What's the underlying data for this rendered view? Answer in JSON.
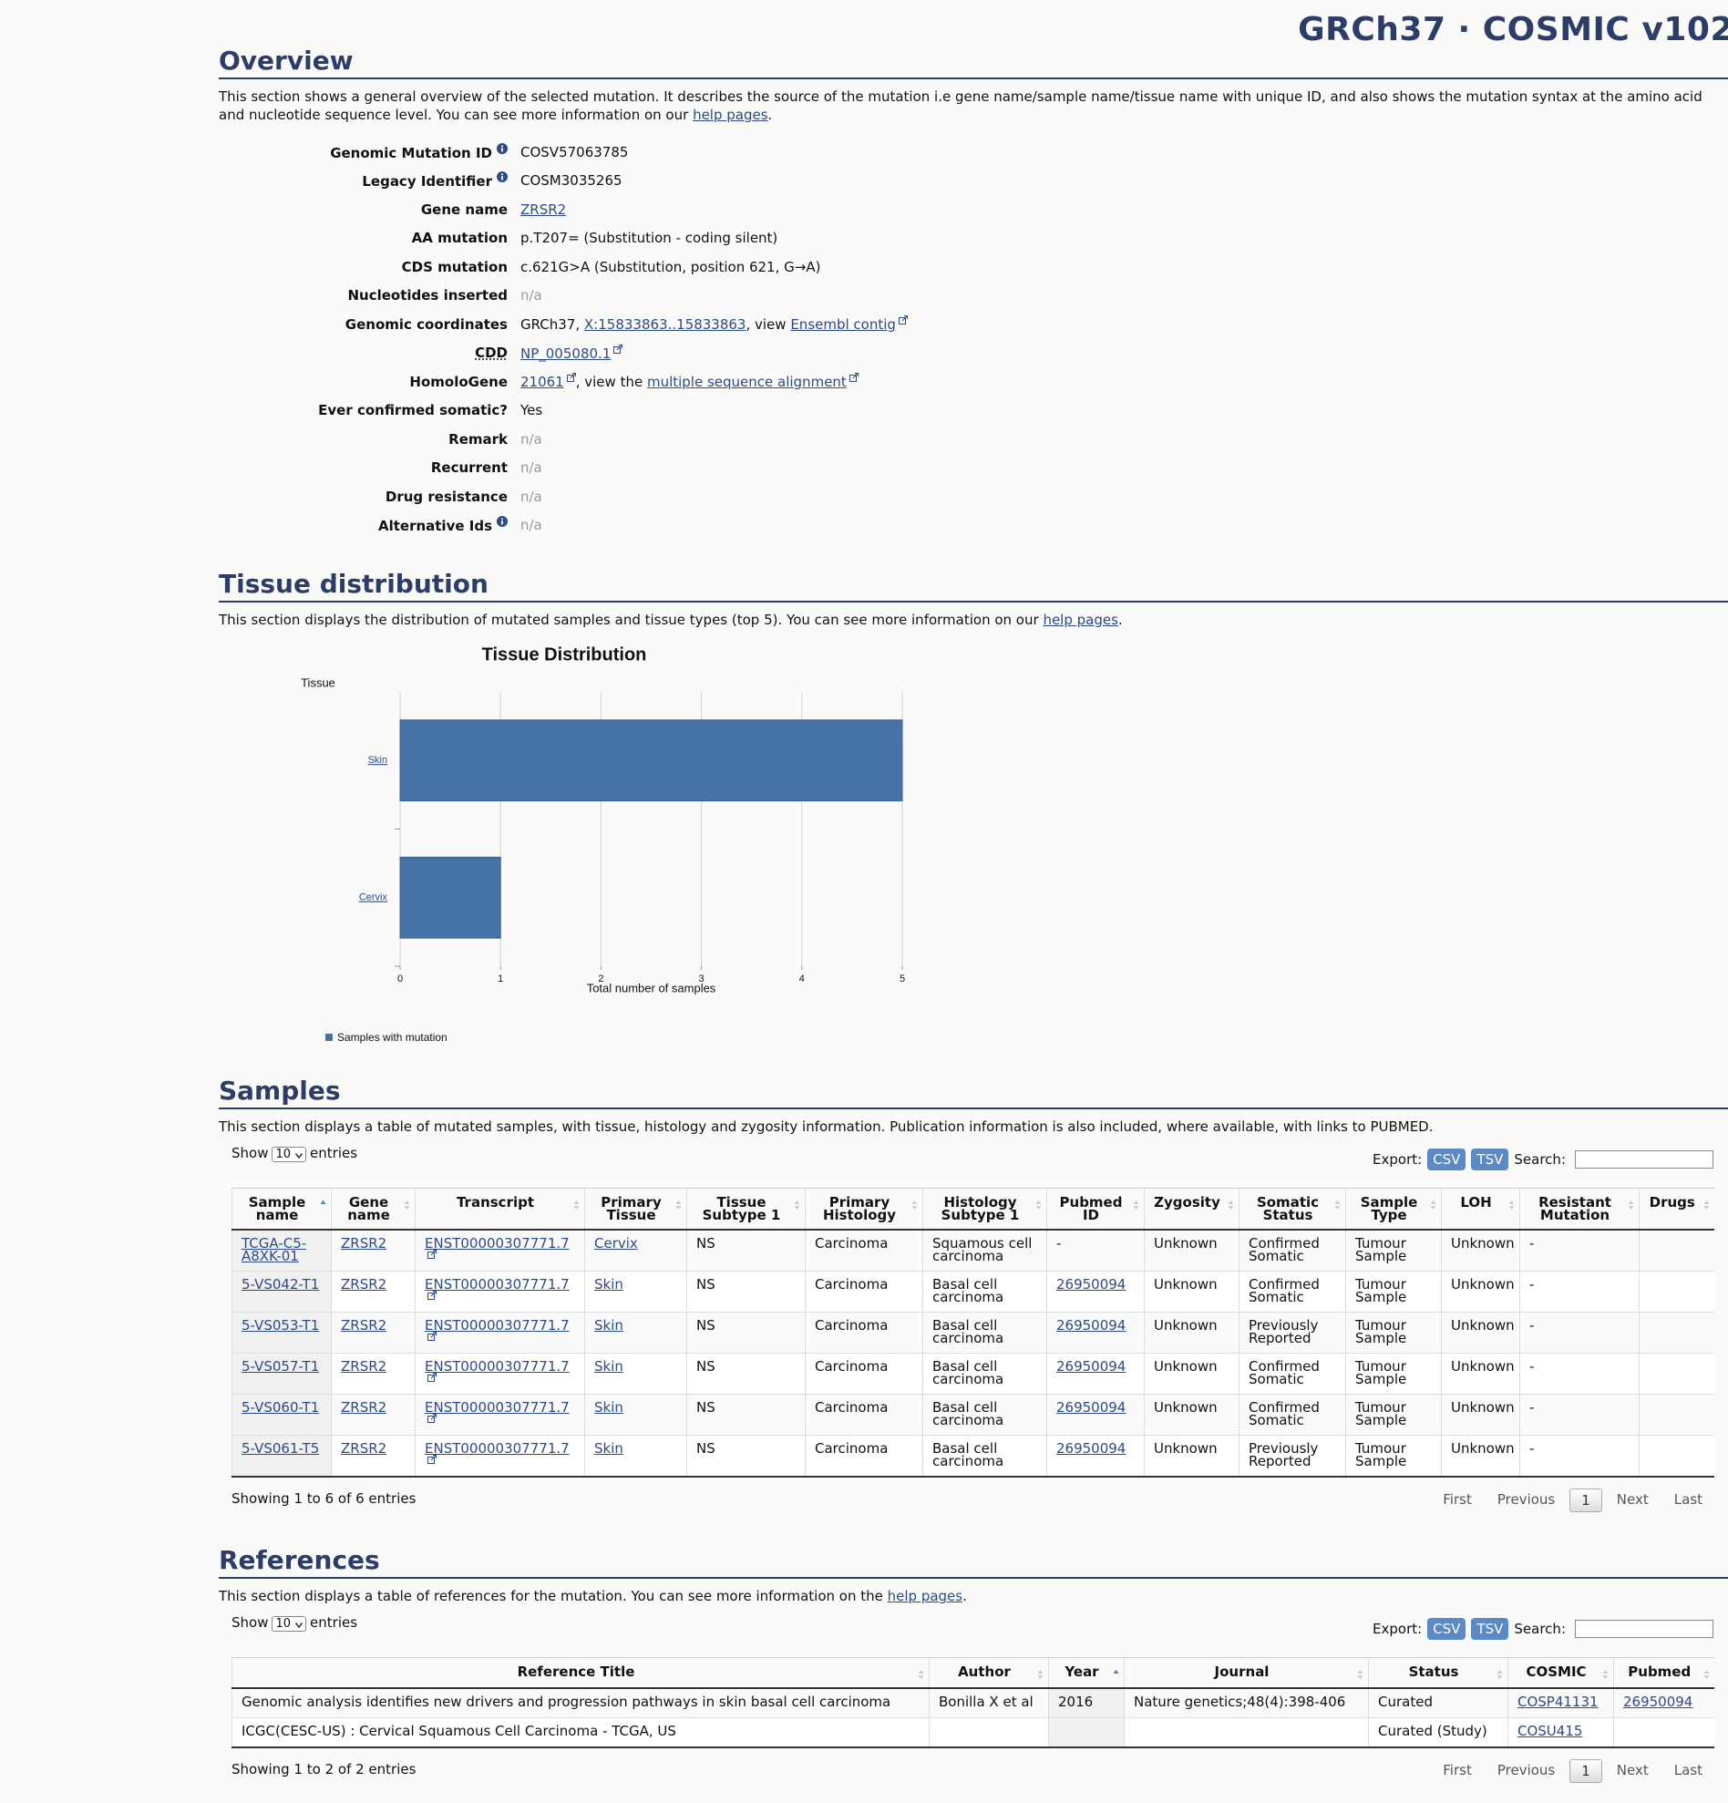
{
  "header": {
    "title": "GRCh37 · COSMIC v102"
  },
  "overview": {
    "heading": "Overview",
    "intro": [
      "This section shows a general overview of the selected mutation. It describes the source of the mutation i.e gene name/sample name/tissue name with unique ID, and also shows the mutation syntax at the amino acid and nucleotide sequence level. You can see more information on our ",
      {
        "link": "help pages"
      },
      "."
    ],
    "fields": [
      {
        "label": "Genomic Mutation ID",
        "info": true,
        "value": [
          "COSV57063785"
        ]
      },
      {
        "label": "Legacy Identifier",
        "info": true,
        "value": [
          "COSM3035265"
        ]
      },
      {
        "label": "Gene name",
        "value": [
          {
            "link": "ZRSR2"
          }
        ]
      },
      {
        "label": "AA mutation",
        "value": [
          "p.T207= (Substitution - coding silent)"
        ]
      },
      {
        "label": "CDS mutation",
        "value": [
          "c.621G>A (Substitution, position 621, G→A)"
        ]
      },
      {
        "label": "Nucleotides inserted",
        "muted": true,
        "value": [
          "n/a"
        ]
      },
      {
        "label": "Genomic coordinates",
        "value": [
          "GRCh37, ",
          {
            "link": "X:15833863..15833863"
          },
          ", view ",
          {
            "link": "Ensembl contig",
            "external": true
          }
        ]
      },
      {
        "label": "CDD",
        "abbr": true,
        "value": [
          {
            "link": "NP_005080.1",
            "external": true
          }
        ]
      },
      {
        "label": "HomoloGene",
        "value": [
          {
            "link": "21061",
            "external": true
          },
          ", view the ",
          {
            "link": "multiple sequence alignment",
            "external": true
          }
        ]
      },
      {
        "label": "Ever confirmed somatic?",
        "value": [
          "Yes"
        ]
      },
      {
        "label": "Remark",
        "muted": true,
        "value": [
          "n/a"
        ]
      },
      {
        "label": "Recurrent",
        "muted": true,
        "value": [
          "n/a"
        ]
      },
      {
        "label": "Drug resistance",
        "muted": true,
        "value": [
          "n/a"
        ]
      },
      {
        "label": "Alternative Ids",
        "info": true,
        "muted": true,
        "value": [
          "n/a"
        ]
      }
    ]
  },
  "tissue": {
    "heading": "Tissue distribution",
    "intro": [
      "This section displays the distribution of mutated samples and tissue types (top 5). You can see more information on our ",
      {
        "link": "help pages"
      },
      "."
    ]
  },
  "chart_data": {
    "type": "bar",
    "orientation": "horizontal",
    "title": "Tissue Distribution",
    "y_label": "Tissue",
    "x_label": "Total number of samples",
    "categories": [
      "Skin",
      "Cervix"
    ],
    "series": [
      {
        "name": "Samples with mutation",
        "color": "#4672a8",
        "values": [
          5,
          1
        ]
      }
    ],
    "xlim": [
      0,
      5
    ],
    "xticks": [
      0,
      1,
      2,
      3,
      4,
      5
    ],
    "grid": true
  },
  "samples": {
    "heading": "Samples",
    "intro": [
      "This section displays a table of mutated samples, with tissue, histology and zygosity information. Publication information is also included, where available, with links to PUBMED."
    ],
    "controls": {
      "show": "Show",
      "length": "10",
      "entries": "entries",
      "export": "Export:",
      "csv": "CSV",
      "tsv": "TSV",
      "search": "Search:"
    },
    "sorted_column": 0,
    "columns": [
      "Sample name",
      "Gene name",
      "Transcript",
      "Primary Tissue",
      "Tissue Subtype 1",
      "Primary Histology",
      "Histology Subtype 1",
      "Pubmed ID",
      "Zygosity",
      "Somatic Status",
      "Sample Type",
      "LOH",
      "Resistant Mutation",
      "Drugs"
    ],
    "rows": [
      [
        {
          "link": "TCGA-C5-A8XK-01"
        },
        {
          "link": "ZRSR2"
        },
        {
          "link": "ENST00000307771.7",
          "external": true
        },
        {
          "link": "Cervix"
        },
        "NS",
        "Carcinoma",
        "Squamous cell carcinoma",
        "-",
        "Unknown",
        "Confirmed Somatic",
        "Tumour Sample",
        "Unknown",
        "-",
        null
      ],
      [
        {
          "link": "5-VS042-T1"
        },
        {
          "link": "ZRSR2"
        },
        {
          "link": "ENST00000307771.7",
          "external": true
        },
        {
          "link": "Skin"
        },
        "NS",
        "Carcinoma",
        "Basal cell carcinoma",
        {
          "link": "26950094"
        },
        "Unknown",
        "Confirmed Somatic",
        "Tumour Sample",
        "Unknown",
        "-",
        null
      ],
      [
        {
          "link": "5-VS053-T1"
        },
        {
          "link": "ZRSR2"
        },
        {
          "link": "ENST00000307771.7",
          "external": true
        },
        {
          "link": "Skin"
        },
        "NS",
        "Carcinoma",
        "Basal cell carcinoma",
        {
          "link": "26950094"
        },
        "Unknown",
        "Previously Reported",
        "Tumour Sample",
        "Unknown",
        "-",
        null
      ],
      [
        {
          "link": "5-VS057-T1"
        },
        {
          "link": "ZRSR2"
        },
        {
          "link": "ENST00000307771.7",
          "external": true
        },
        {
          "link": "Skin"
        },
        "NS",
        "Carcinoma",
        "Basal cell carcinoma",
        {
          "link": "26950094"
        },
        "Unknown",
        "Confirmed Somatic",
        "Tumour Sample",
        "Unknown",
        "-",
        null
      ],
      [
        {
          "link": "5-VS060-T1"
        },
        {
          "link": "ZRSR2"
        },
        {
          "link": "ENST00000307771.7",
          "external": true
        },
        {
          "link": "Skin"
        },
        "NS",
        "Carcinoma",
        "Basal cell carcinoma",
        {
          "link": "26950094"
        },
        "Unknown",
        "Confirmed Somatic",
        "Tumour Sample",
        "Unknown",
        "-",
        null
      ],
      [
        {
          "link": "5-VS061-T5"
        },
        {
          "link": "ZRSR2"
        },
        {
          "link": "ENST00000307771.7",
          "external": true
        },
        {
          "link": "Skin"
        },
        "NS",
        "Carcinoma",
        "Basal cell carcinoma",
        {
          "link": "26950094"
        },
        "Unknown",
        "Previously Reported",
        "Tumour Sample",
        "Unknown",
        "-",
        null
      ]
    ],
    "info": "Showing 1 to 6 of 6 entries",
    "pager": [
      "First",
      "Previous",
      "1",
      "Next",
      "Last"
    ],
    "pager_current": 2
  },
  "references": {
    "heading": "References",
    "intro": [
      "This section displays a table of references for the mutation. You can see more information on the ",
      {
        "link": "help pages"
      },
      "."
    ],
    "controls": {
      "show": "Show",
      "length": "10",
      "entries": "entries",
      "export": "Export:",
      "csv": "CSV",
      "tsv": "TSV",
      "search": "Search:"
    },
    "sorted_column": 2,
    "columns": [
      "Reference Title",
      "Author",
      "Year",
      "Journal",
      "Status",
      "COSMIC",
      "Pubmed"
    ],
    "rows": [
      [
        "Genomic analysis identifies new drivers and progression pathways in skin basal cell carcinoma",
        "Bonilla X et al",
        "2016",
        "Nature genetics;48(4):398-406",
        "Curated",
        {
          "link": "COSP41131"
        },
        {
          "link": "26950094"
        }
      ],
      [
        "ICGC(CESC-US) : Cervical Squamous Cell Carcinoma - TCGA, US",
        null,
        null,
        null,
        "Curated (Study)",
        {
          "link": "COSU415"
        },
        null
      ]
    ],
    "info": "Showing 1 to 2 of 2 entries",
    "pager": [
      "First",
      "Previous",
      "1",
      "Next",
      "Last"
    ],
    "pager_current": 2
  }
}
